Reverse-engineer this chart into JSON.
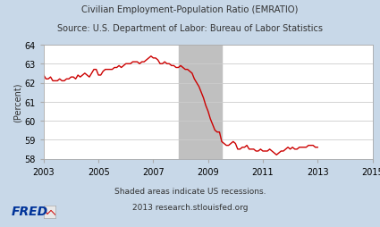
{
  "title_line1": "Civilian Employment-Population Ratio (EMRATIO)",
  "title_line2": "Source: U.S. Department of Labor: Bureau of Labor Statistics",
  "ylabel": "(Percent)",
  "xlim": [
    2003,
    2015
  ],
  "ylim": [
    58,
    64
  ],
  "yticks": [
    58,
    59,
    60,
    61,
    62,
    63,
    64
  ],
  "xticks": [
    2003,
    2005,
    2007,
    2009,
    2011,
    2013,
    2015
  ],
  "recession_start": 2007.917,
  "recession_end": 2009.5,
  "background_color": "#c8d8e8",
  "plot_bg_color": "#ffffff",
  "line_color": "#cc0000",
  "recession_color": "#c0c0c0",
  "fred_logo_color": "#003399",
  "data": [
    [
      2003.0,
      62.4
    ],
    [
      2003.083,
      62.2
    ],
    [
      2003.167,
      62.2
    ],
    [
      2003.25,
      62.3
    ],
    [
      2003.333,
      62.1
    ],
    [
      2003.417,
      62.1
    ],
    [
      2003.5,
      62.1
    ],
    [
      2003.583,
      62.2
    ],
    [
      2003.667,
      62.1
    ],
    [
      2003.75,
      62.1
    ],
    [
      2003.833,
      62.2
    ],
    [
      2003.917,
      62.2
    ],
    [
      2004.0,
      62.3
    ],
    [
      2004.083,
      62.3
    ],
    [
      2004.167,
      62.2
    ],
    [
      2004.25,
      62.4
    ],
    [
      2004.333,
      62.3
    ],
    [
      2004.417,
      62.4
    ],
    [
      2004.5,
      62.5
    ],
    [
      2004.583,
      62.4
    ],
    [
      2004.667,
      62.3
    ],
    [
      2004.75,
      62.5
    ],
    [
      2004.833,
      62.7
    ],
    [
      2004.917,
      62.7
    ],
    [
      2005.0,
      62.4
    ],
    [
      2005.083,
      62.4
    ],
    [
      2005.167,
      62.6
    ],
    [
      2005.25,
      62.7
    ],
    [
      2005.333,
      62.7
    ],
    [
      2005.417,
      62.7
    ],
    [
      2005.5,
      62.7
    ],
    [
      2005.583,
      62.8
    ],
    [
      2005.667,
      62.8
    ],
    [
      2005.75,
      62.9
    ],
    [
      2005.833,
      62.8
    ],
    [
      2005.917,
      62.9
    ],
    [
      2006.0,
      63.0
    ],
    [
      2006.083,
      63.0
    ],
    [
      2006.167,
      63.0
    ],
    [
      2006.25,
      63.1
    ],
    [
      2006.333,
      63.1
    ],
    [
      2006.417,
      63.1
    ],
    [
      2006.5,
      63.0
    ],
    [
      2006.583,
      63.1
    ],
    [
      2006.667,
      63.1
    ],
    [
      2006.75,
      63.2
    ],
    [
      2006.833,
      63.3
    ],
    [
      2006.917,
      63.4
    ],
    [
      2007.0,
      63.3
    ],
    [
      2007.083,
      63.3
    ],
    [
      2007.167,
      63.2
    ],
    [
      2007.25,
      63.0
    ],
    [
      2007.333,
      63.0
    ],
    [
      2007.417,
      63.1
    ],
    [
      2007.5,
      63.0
    ],
    [
      2007.583,
      63.0
    ],
    [
      2007.667,
      62.9
    ],
    [
      2007.75,
      62.9
    ],
    [
      2007.833,
      62.8
    ],
    [
      2007.917,
      62.8
    ],
    [
      2008.0,
      62.9
    ],
    [
      2008.083,
      62.8
    ],
    [
      2008.167,
      62.7
    ],
    [
      2008.25,
      62.7
    ],
    [
      2008.333,
      62.6
    ],
    [
      2008.417,
      62.5
    ],
    [
      2008.5,
      62.2
    ],
    [
      2008.583,
      62.0
    ],
    [
      2008.667,
      61.8
    ],
    [
      2008.75,
      61.5
    ],
    [
      2008.833,
      61.2
    ],
    [
      2008.917,
      60.8
    ],
    [
      2009.0,
      60.5
    ],
    [
      2009.083,
      60.1
    ],
    [
      2009.167,
      59.8
    ],
    [
      2009.25,
      59.5
    ],
    [
      2009.333,
      59.4
    ],
    [
      2009.417,
      59.4
    ],
    [
      2009.5,
      58.9
    ],
    [
      2009.583,
      58.8
    ],
    [
      2009.667,
      58.7
    ],
    [
      2009.75,
      58.7
    ],
    [
      2009.833,
      58.8
    ],
    [
      2009.917,
      58.9
    ],
    [
      2010.0,
      58.8
    ],
    [
      2010.083,
      58.5
    ],
    [
      2010.167,
      58.5
    ],
    [
      2010.25,
      58.6
    ],
    [
      2010.333,
      58.6
    ],
    [
      2010.417,
      58.7
    ],
    [
      2010.5,
      58.5
    ],
    [
      2010.583,
      58.5
    ],
    [
      2010.667,
      58.5
    ],
    [
      2010.75,
      58.4
    ],
    [
      2010.833,
      58.4
    ],
    [
      2010.917,
      58.5
    ],
    [
      2011.0,
      58.4
    ],
    [
      2011.083,
      58.4
    ],
    [
      2011.167,
      58.4
    ],
    [
      2011.25,
      58.5
    ],
    [
      2011.333,
      58.4
    ],
    [
      2011.417,
      58.3
    ],
    [
      2011.5,
      58.2
    ],
    [
      2011.583,
      58.3
    ],
    [
      2011.667,
      58.4
    ],
    [
      2011.75,
      58.4
    ],
    [
      2011.833,
      58.5
    ],
    [
      2011.917,
      58.6
    ],
    [
      2012.0,
      58.5
    ],
    [
      2012.083,
      58.6
    ],
    [
      2012.167,
      58.5
    ],
    [
      2012.25,
      58.5
    ],
    [
      2012.333,
      58.6
    ],
    [
      2012.417,
      58.6
    ],
    [
      2012.5,
      58.6
    ],
    [
      2012.583,
      58.6
    ],
    [
      2012.667,
      58.7
    ],
    [
      2012.75,
      58.7
    ],
    [
      2012.833,
      58.7
    ],
    [
      2012.917,
      58.6
    ],
    [
      2013.0,
      58.6
    ]
  ]
}
